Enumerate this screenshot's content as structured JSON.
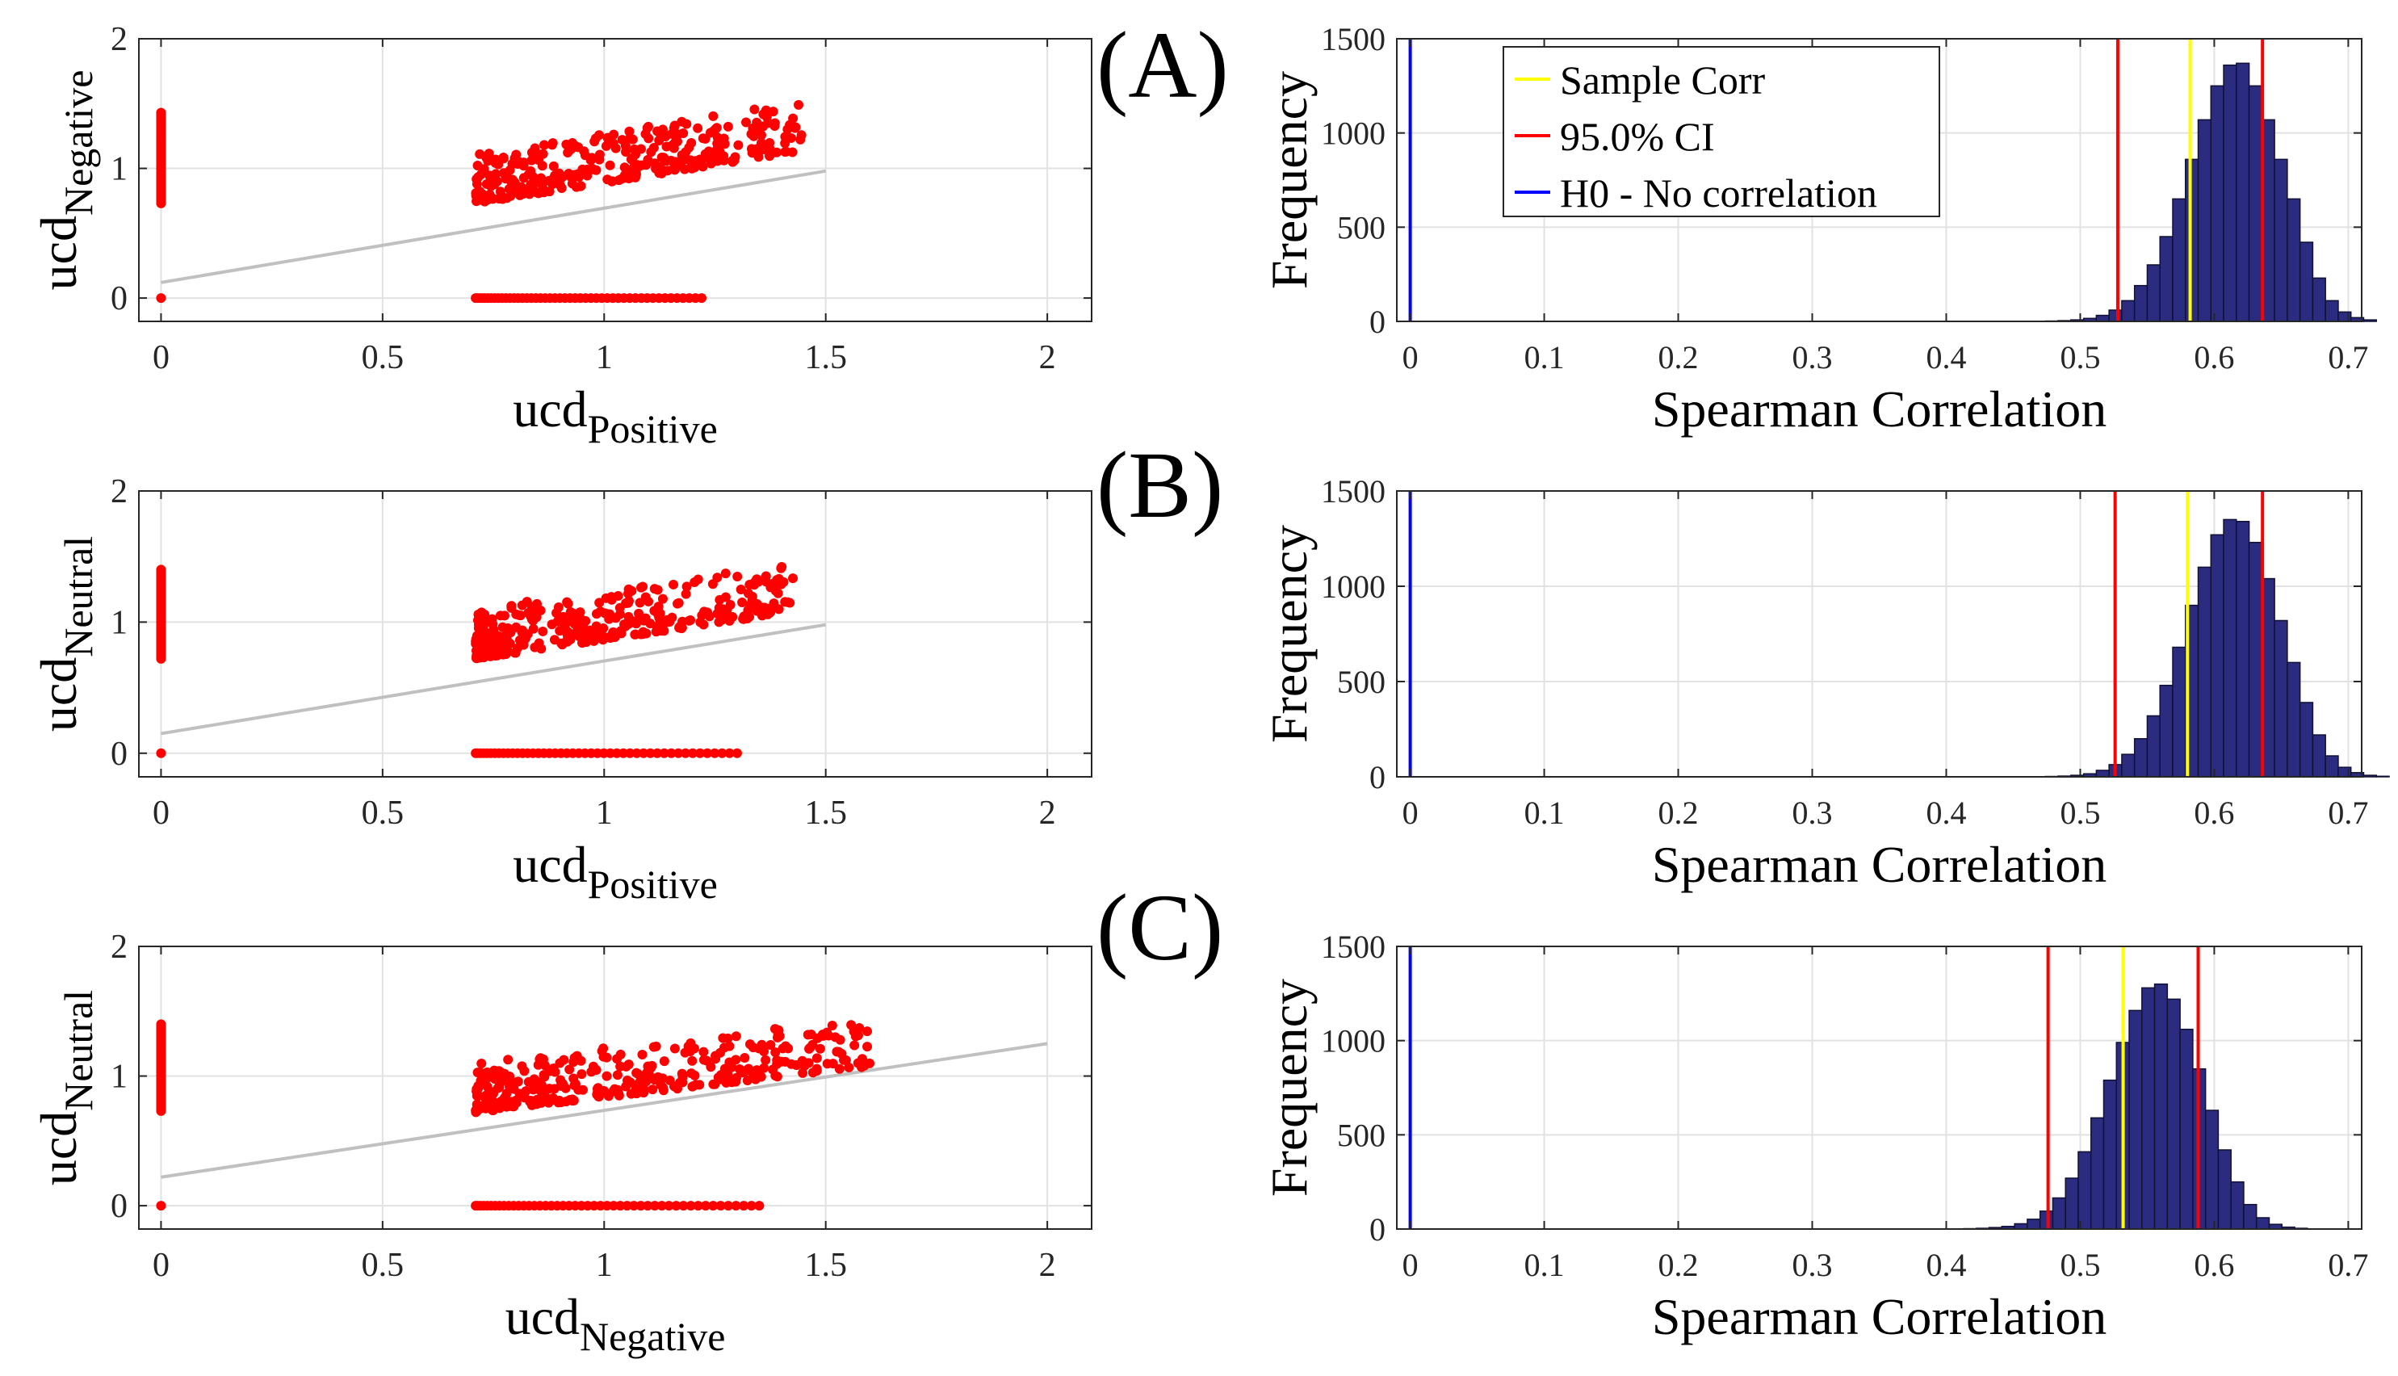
{
  "chart_data": [
    {
      "type": "scatter",
      "xlabel": {
        "base": "ucd",
        "sub": "Positive"
      },
      "ylabel": {
        "base": "ucd",
        "sub": "Negative"
      },
      "xlim": [
        -0.05,
        2.1
      ],
      "ylim": [
        -0.18,
        2.0
      ],
      "xticks": [
        0,
        0.5,
        1,
        1.5,
        2
      ],
      "xtick_labels": [
        "0",
        "0.5",
        "1",
        "1.5",
        "2"
      ],
      "yticks": [
        0,
        1,
        2
      ],
      "ytick_labels": [
        "0",
        "1",
        "2"
      ],
      "grid": true,
      "point_color": "#ff0000",
      "fit_line": {
        "x": [
          0,
          1.5
        ],
        "y": [
          0.12,
          0.98
        ],
        "color": "#c0c0c0"
      },
      "point_groups": {
        "x_zero_column": {
          "x": 0,
          "y_range": [
            0.73,
            1.43
          ],
          "count": 40
        },
        "y_zero_row": {
          "y": 0,
          "x_range": [
            0.71,
            1.22
          ],
          "count": 48
        },
        "cluster": {
          "x_range": [
            0.71,
            1.45
          ],
          "y_range": [
            0.73,
            1.6
          ],
          "count": 340,
          "trend_slope": 0.55
        }
      }
    },
    {
      "type": "bar",
      "title": "",
      "xlabel": "Spearman Correlation",
      "ylabel": "Frequency",
      "xlim": [
        -0.01,
        0.71
      ],
      "ylim": [
        0,
        1500
      ],
      "xticks": [
        0,
        0.1,
        0.2,
        0.3,
        0.4,
        0.5,
        0.6,
        0.7
      ],
      "xtick_labels": [
        "0",
        "0.1",
        "0.2",
        "0.3",
        "0.4",
        "0.5",
        "0.6",
        "0.7"
      ],
      "yticks": [
        0,
        500,
        1000,
        1500
      ],
      "ytick_labels": [
        "0",
        "500",
        "1000",
        "1500"
      ],
      "grid": true,
      "bar_color": "#2b2b7f",
      "bin_width": 0.0095,
      "bins_start": 0.474,
      "frequencies": [
        2,
        4,
        8,
        16,
        32,
        60,
        110,
        190,
        300,
        450,
        650,
        860,
        1070,
        1250,
        1360,
        1370,
        1250,
        1070,
        860,
        650,
        420,
        230,
        110,
        50,
        20,
        8
      ],
      "lines": [
        {
          "label": "Sample Corr",
          "x": 0.582,
          "color": "#ffff00"
        },
        {
          "label": "95.0% CI",
          "x": 0.528,
          "color": "#ff0000"
        },
        {
          "label": "95.0% CI",
          "x": 0.636,
          "color": "#ff0000"
        },
        {
          "label": "H0 - No correlation",
          "x": 0.0,
          "color": "#0000ff"
        }
      ],
      "legend": {
        "position": "top-left",
        "entries": [
          {
            "label": "Sample Corr",
            "color": "#ffff00"
          },
          {
            "label": "95.0% CI",
            "color": "#ff0000"
          },
          {
            "label": "H0 - No correlation",
            "color": "#0000ff"
          }
        ]
      }
    },
    {
      "type": "scatter",
      "xlabel": {
        "base": "ucd",
        "sub": "Positive"
      },
      "ylabel": {
        "base": "ucd",
        "sub": "Neutral"
      },
      "xlim": [
        -0.05,
        2.1
      ],
      "ylim": [
        -0.18,
        2.0
      ],
      "xticks": [
        0,
        0.5,
        1,
        1.5,
        2
      ],
      "xtick_labels": [
        "0",
        "0.5",
        "1",
        "1.5",
        "2"
      ],
      "yticks": [
        0,
        1,
        2
      ],
      "ytick_labels": [
        "0",
        "1",
        "2"
      ],
      "grid": true,
      "point_color": "#ff0000",
      "fit_line": {
        "x": [
          0,
          1.5
        ],
        "y": [
          0.15,
          0.98
        ],
        "color": "#c0c0c0"
      },
      "point_groups": {
        "x_zero_column": {
          "x": 0,
          "y_range": [
            0.72,
            1.4
          ],
          "count": 40
        },
        "y_zero_row": {
          "y": 0,
          "x_range": [
            0.71,
            1.3
          ],
          "count": 46
        },
        "cluster": {
          "x_range": [
            0.71,
            1.43
          ],
          "y_range": [
            0.72,
            1.53
          ],
          "count": 340,
          "trend_slope": 0.5
        }
      }
    },
    {
      "type": "bar",
      "title": "",
      "xlabel": "Spearman Correlation",
      "ylabel": "Frequency",
      "xlim": [
        -0.01,
        0.71
      ],
      "ylim": [
        0,
        1500
      ],
      "xticks": [
        0,
        0.1,
        0.2,
        0.3,
        0.4,
        0.5,
        0.6,
        0.7
      ],
      "xtick_labels": [
        "0",
        "0.1",
        "0.2",
        "0.3",
        "0.4",
        "0.5",
        "0.6",
        "0.7"
      ],
      "yticks": [
        0,
        500,
        1000,
        1500
      ],
      "ytick_labels": [
        "0",
        "500",
        "1000",
        "1500"
      ],
      "grid": true,
      "bar_color": "#2b2b7f",
      "bin_width": 0.0095,
      "bins_start": 0.474,
      "frequencies": [
        2,
        4,
        8,
        16,
        34,
        64,
        118,
        200,
        320,
        480,
        680,
        900,
        1100,
        1270,
        1350,
        1340,
        1230,
        1040,
        820,
        600,
        390,
        220,
        110,
        50,
        22,
        8,
        3
      ],
      "lines": [
        {
          "label": "Sample Corr",
          "x": 0.58,
          "color": "#ffff00"
        },
        {
          "label": "95.0% CI",
          "x": 0.526,
          "color": "#ff0000"
        },
        {
          "label": "95.0% CI",
          "x": 0.636,
          "color": "#ff0000"
        },
        {
          "label": "H0 - No correlation",
          "x": 0.0,
          "color": "#0000ff"
        }
      ]
    },
    {
      "type": "scatter",
      "xlabel": {
        "base": "ucd",
        "sub": "Negative"
      },
      "ylabel": {
        "base": "ucd",
        "sub": "Neutral"
      },
      "xlim": [
        -0.05,
        2.1
      ],
      "ylim": [
        -0.18,
        2.0
      ],
      "xticks": [
        0,
        0.5,
        1,
        1.5,
        2
      ],
      "xtick_labels": [
        "0",
        "0.5",
        "1",
        "1.5",
        "2"
      ],
      "yticks": [
        0,
        1,
        2
      ],
      "ytick_labels": [
        "0",
        "1",
        "2"
      ],
      "grid": true,
      "point_color": "#ff0000",
      "fit_line": {
        "x": [
          0,
          2.0
        ],
        "y": [
          0.22,
          1.25
        ],
        "color": "#c0c0c0"
      },
      "point_groups": {
        "x_zero_column": {
          "x": 0,
          "y_range": [
            0.73,
            1.4
          ],
          "count": 40
        },
        "y_zero_row": {
          "y": 0,
          "x_range": [
            0.71,
            1.35
          ],
          "count": 48
        },
        "cluster": {
          "x_range": [
            0.71,
            1.6
          ],
          "y_range": [
            0.72,
            1.5
          ],
          "count": 330,
          "trend_slope": 0.4
        }
      }
    },
    {
      "type": "bar",
      "title": "",
      "xlabel": "Spearman Correlation",
      "ylabel": "Frequency",
      "xlim": [
        -0.01,
        0.71
      ],
      "ylim": [
        0,
        1500
      ],
      "xticks": [
        0,
        0.1,
        0.2,
        0.3,
        0.4,
        0.5,
        0.6,
        0.7
      ],
      "xtick_labels": [
        "0",
        "0.1",
        "0.2",
        "0.3",
        "0.4",
        "0.5",
        "0.6",
        "0.7"
      ],
      "yticks": [
        0,
        500,
        1000,
        1500
      ],
      "ytick_labels": [
        "0",
        "500",
        "1000",
        "1500"
      ],
      "grid": true,
      "bar_color": "#2b2b7f",
      "bin_width": 0.0095,
      "bins_start": 0.413,
      "frequencies": [
        2,
        4,
        8,
        14,
        28,
        52,
        95,
        165,
        270,
        410,
        590,
        790,
        990,
        1160,
        1280,
        1300,
        1220,
        1060,
        850,
        630,
        420,
        250,
        130,
        60,
        25,
        10,
        4
      ],
      "lines": [
        {
          "label": "Sample Corr",
          "x": 0.532,
          "color": "#ffff00"
        },
        {
          "label": "95.0% CI",
          "x": 0.476,
          "color": "#ff0000"
        },
        {
          "label": "95.0% CI",
          "x": 0.588,
          "color": "#ff0000"
        },
        {
          "label": "H0 - No correlation",
          "x": 0.0,
          "color": "#0000ff"
        }
      ]
    }
  ],
  "panel_labels": [
    "(A)",
    "(B)",
    "(C)"
  ]
}
